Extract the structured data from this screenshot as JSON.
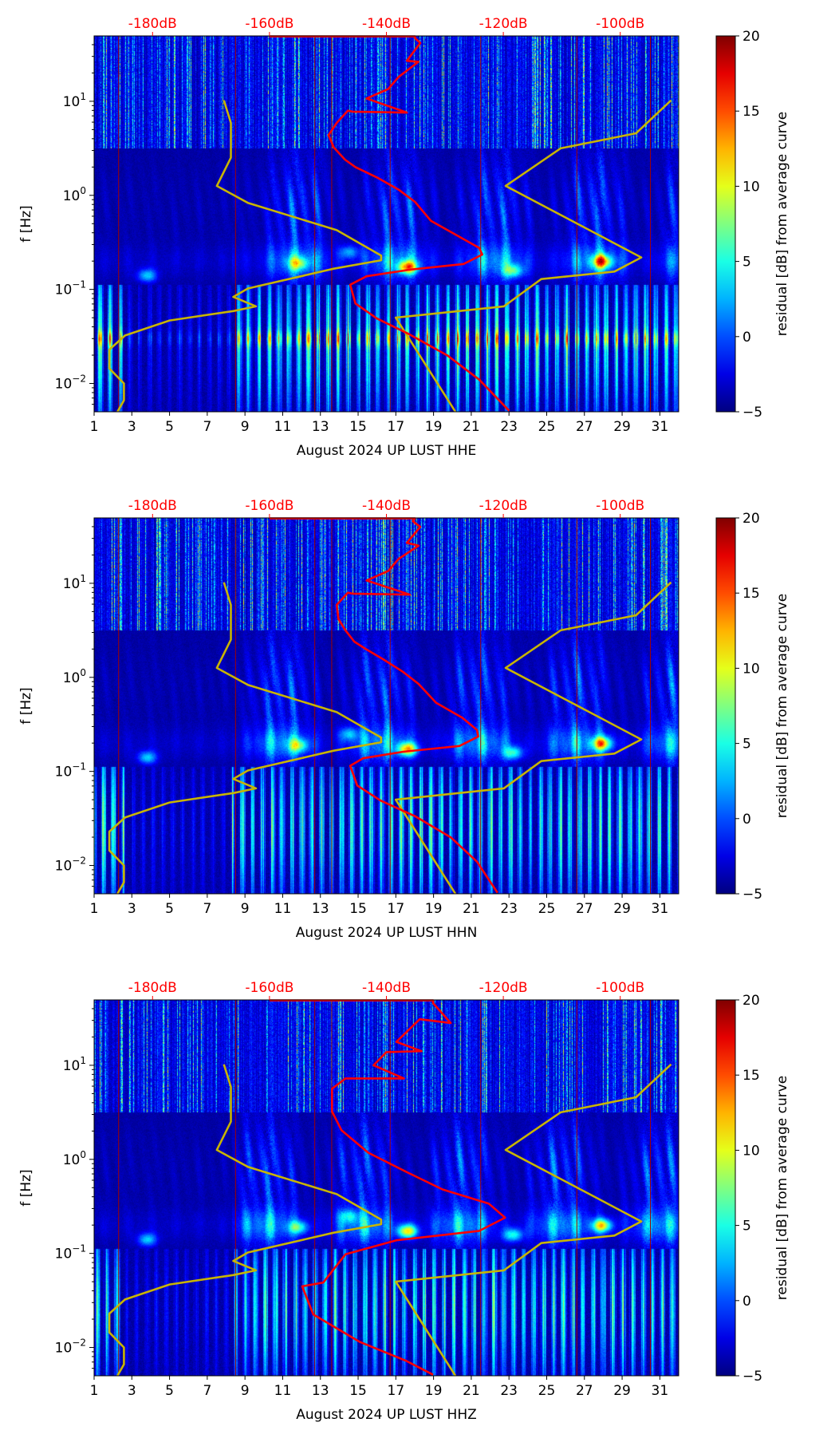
{
  "chart_data": [
    {
      "type": "heatmap",
      "xlabel": "August 2024 UP LUST  HHE",
      "ylabel": "f [Hz]",
      "colorbar_label": "residual [dB] from average curve",
      "xlim": [
        1,
        32
      ],
      "ylim_hz": [
        0.005,
        49.6
      ],
      "yscale": "log",
      "xticks": [
        "1",
        "3",
        "5",
        "7",
        "9",
        "11",
        "13",
        "15",
        "17",
        "19",
        "21",
        "23",
        "25",
        "27",
        "29",
        "31"
      ],
      "yticks": [
        {
          "base": "10",
          "exp": "1",
          "value": 1
        },
        {
          "base": "10",
          "exp": "0",
          "value": 0
        },
        {
          "base": "10",
          "exp": "−1",
          "value": -1
        },
        {
          "base": "10",
          "exp": "−2",
          "value": -2
        }
      ],
      "top_axis": {
        "range_db": [
          -190,
          -90
        ],
        "ticks": [
          -180,
          -160,
          -140,
          -120,
          -100
        ],
        "labels": [
          "-180dB",
          "-160dB",
          "-140dB",
          "-120dB",
          "-100dB"
        ],
        "color": "#ff0000"
      },
      "colorbar": {
        "range": [
          -5,
          20
        ],
        "ticks": [
          "−5",
          "0",
          "5",
          "10",
          "15",
          "20"
        ],
        "colormap": "jet"
      },
      "series": [
        {
          "name": "noise-model-low",
          "color": "#c8b400",
          "points_db_log10hz": [
            [
              -167.8,
              1.01
            ],
            [
              -166.6,
              0.77
            ],
            [
              -166.6,
              0.4
            ],
            [
              -169.0,
              0.1
            ],
            [
              -163.7,
              -0.08
            ],
            [
              -148.5,
              -0.37
            ],
            [
              -140.9,
              -0.64
            ],
            [
              -140.9,
              -0.69
            ],
            [
              -149.0,
              -0.78
            ],
            [
              -163.7,
              -0.99
            ],
            [
              -166.2,
              -1.08
            ],
            [
              -162.3,
              -1.18
            ],
            [
              -166.2,
              -1.23
            ],
            [
              -177.1,
              -1.33
            ],
            [
              -184.7,
              -1.49
            ],
            [
              -187.4,
              -1.64
            ],
            [
              -187.4,
              -1.84
            ],
            [
              -184.9,
              -2.0
            ],
            [
              -184.9,
              -2.18
            ],
            [
              -186.0,
              -2.3
            ]
          ]
        },
        {
          "name": "noise-model-high",
          "color": "#c8b400",
          "points_db_log10hz": [
            [
              -91.3,
              1.01
            ],
            [
              -97.3,
              0.66
            ],
            [
              -110.2,
              0.5
            ],
            [
              -119.6,
              0.1
            ],
            [
              -96.4,
              -0.66
            ],
            [
              -101.0,
              -0.81
            ],
            [
              -113.5,
              -0.89
            ],
            [
              -119.9,
              -1.18
            ],
            [
              -138.4,
              -1.3
            ],
            [
              -128.2,
              -2.3
            ]
          ]
        },
        {
          "name": "psd-average",
          "color": "#ff0000",
          "points_db_log10hz": [
            [
              -160,
              1.69
            ],
            [
              -135.1,
              1.69
            ],
            [
              -135.1,
              1.67
            ],
            [
              -134.2,
              1.62
            ],
            [
              -136.5,
              1.43
            ],
            [
              -134.5,
              1.42
            ],
            [
              -137.9,
              1.26
            ],
            [
              -139.7,
              1.13
            ],
            [
              -143.4,
              1.03
            ],
            [
              -136.5,
              0.88
            ],
            [
              -145.8,
              0.89
            ],
            [
              -146.6,
              0.9
            ],
            [
              -148.5,
              0.77
            ],
            [
              -149.9,
              0.64
            ],
            [
              -149.0,
              0.51
            ],
            [
              -147.1,
              0.38
            ],
            [
              -145.3,
              0.3
            ],
            [
              -141.6,
              0.19
            ],
            [
              -137.9,
              0.06
            ],
            [
              -135.1,
              -0.07
            ],
            [
              -132.4,
              -0.27
            ],
            [
              -127.8,
              -0.43
            ],
            [
              -124.1,
              -0.56
            ],
            [
              -123.6,
              -0.63
            ],
            [
              -126.8,
              -0.73
            ],
            [
              -136.0,
              -0.79
            ],
            [
              -143.4,
              -0.86
            ],
            [
              -146.2,
              -0.95
            ],
            [
              -145.3,
              -1.15
            ],
            [
              -141.6,
              -1.31
            ],
            [
              -136.0,
              -1.48
            ],
            [
              -129.6,
              -1.7
            ],
            [
              -124.1,
              -1.96
            ],
            [
              -119.0,
              -2.29
            ]
          ]
        }
      ]
    },
    {
      "type": "heatmap",
      "xlabel": "August 2024 UP LUST  HHN",
      "ylabel": "f [Hz]",
      "colorbar_label": "residual [dB] from average curve",
      "xlim": [
        1,
        32
      ],
      "ylim_hz": [
        0.005,
        49.6
      ],
      "yscale": "log",
      "xticks": [
        "1",
        "3",
        "5",
        "7",
        "9",
        "11",
        "13",
        "15",
        "17",
        "19",
        "21",
        "23",
        "25",
        "27",
        "29",
        "31"
      ],
      "yticks": [
        {
          "base": "10",
          "exp": "1",
          "value": 1
        },
        {
          "base": "10",
          "exp": "0",
          "value": 0
        },
        {
          "base": "10",
          "exp": "−1",
          "value": -1
        },
        {
          "base": "10",
          "exp": "−2",
          "value": -2
        }
      ],
      "top_axis": {
        "range_db": [
          -190,
          -90
        ],
        "ticks": [
          -180,
          -160,
          -140,
          -120,
          -100
        ],
        "labels": [
          "-180dB",
          "-160dB",
          "-140dB",
          "-120dB",
          "-100dB"
        ],
        "color": "#ff0000"
      },
      "colorbar": {
        "range": [
          -5,
          20
        ],
        "ticks": [
          "−5",
          "0",
          "5",
          "10",
          "15",
          "20"
        ],
        "colormap": "jet"
      },
      "series": [
        {
          "name": "noise-model-low",
          "color": "#c8b400",
          "points_db_log10hz": [
            [
              -167.8,
              1.01
            ],
            [
              -166.6,
              0.77
            ],
            [
              -166.6,
              0.4
            ],
            [
              -169.0,
              0.1
            ],
            [
              -163.7,
              -0.08
            ],
            [
              -148.5,
              -0.37
            ],
            [
              -140.9,
              -0.64
            ],
            [
              -140.9,
              -0.69
            ],
            [
              -149.0,
              -0.78
            ],
            [
              -163.7,
              -0.99
            ],
            [
              -166.2,
              -1.08
            ],
            [
              -162.3,
              -1.18
            ],
            [
              -166.2,
              -1.23
            ],
            [
              -177.1,
              -1.33
            ],
            [
              -184.7,
              -1.49
            ],
            [
              -187.4,
              -1.64
            ],
            [
              -187.4,
              -1.84
            ],
            [
              -184.9,
              -2.0
            ],
            [
              -184.9,
              -2.18
            ],
            [
              -186.0,
              -2.3
            ]
          ]
        },
        {
          "name": "noise-model-high",
          "color": "#c8b400",
          "points_db_log10hz": [
            [
              -91.3,
              1.01
            ],
            [
              -97.3,
              0.66
            ],
            [
              -110.2,
              0.5
            ],
            [
              -119.6,
              0.1
            ],
            [
              -96.4,
              -0.66
            ],
            [
              -101.0,
              -0.81
            ],
            [
              -113.5,
              -0.89
            ],
            [
              -119.9,
              -1.18
            ],
            [
              -138.4,
              -1.3
            ],
            [
              -128.2,
              -2.3
            ]
          ]
        },
        {
          "name": "psd-average",
          "color": "#ff0000",
          "points_db_log10hz": [
            [
              -160,
              1.69
            ],
            [
              -135.1,
              1.69
            ],
            [
              -135.5,
              1.66
            ],
            [
              -134.2,
              1.6
            ],
            [
              -136.5,
              1.43
            ],
            [
              -134.5,
              1.4
            ],
            [
              -137.9,
              1.26
            ],
            [
              -139.7,
              1.13
            ],
            [
              -143.4,
              1.03
            ],
            [
              -136.0,
              0.88
            ],
            [
              -145.8,
              0.89
            ],
            [
              -146.6,
              0.9
            ],
            [
              -148.5,
              0.77
            ],
            [
              -148.2,
              0.62
            ],
            [
              -147.0,
              0.5
            ],
            [
              -145.5,
              0.38
            ],
            [
              -143.5,
              0.3
            ],
            [
              -140.5,
              0.19
            ],
            [
              -137.2,
              0.06
            ],
            [
              -134.5,
              -0.07
            ],
            [
              -131.5,
              -0.27
            ],
            [
              -127.0,
              -0.43
            ],
            [
              -124.5,
              -0.56
            ],
            [
              -124.3,
              -0.63
            ],
            [
              -127.5,
              -0.73
            ],
            [
              -137.0,
              -0.79
            ],
            [
              -144.0,
              -0.86
            ],
            [
              -146.2,
              -0.94
            ],
            [
              -145.0,
              -1.15
            ],
            [
              -141.0,
              -1.31
            ],
            [
              -135.0,
              -1.48
            ],
            [
              -129.0,
              -1.7
            ],
            [
              -124.5,
              -1.96
            ],
            [
              -121.0,
              -2.29
            ]
          ]
        }
      ]
    },
    {
      "type": "heatmap",
      "xlabel": "August 2024 UP LUST  HHZ",
      "ylabel": "f [Hz]",
      "colorbar_label": "residual [dB] from average curve",
      "xlim": [
        1,
        32
      ],
      "ylim_hz": [
        0.005,
        49.6
      ],
      "yscale": "log",
      "xticks": [
        "1",
        "3",
        "5",
        "7",
        "9",
        "11",
        "13",
        "15",
        "17",
        "19",
        "21",
        "23",
        "25",
        "27",
        "29",
        "31"
      ],
      "yticks": [
        {
          "base": "10",
          "exp": "1",
          "value": 1
        },
        {
          "base": "10",
          "exp": "0",
          "value": 0
        },
        {
          "base": "10",
          "exp": "−1",
          "value": -1
        },
        {
          "base": "10",
          "exp": "−2",
          "value": -2
        }
      ],
      "top_axis": {
        "range_db": [
          -190,
          -90
        ],
        "ticks": [
          -180,
          -160,
          -140,
          -120,
          -100
        ],
        "labels": [
          "-180dB",
          "-160dB",
          "-140dB",
          "-120dB",
          "-100dB"
        ],
        "color": "#ff0000"
      },
      "colorbar": {
        "range": [
          -5,
          20
        ],
        "ticks": [
          "−5",
          "0",
          "5",
          "10",
          "15",
          "20"
        ],
        "colormap": "jet"
      },
      "series": [
        {
          "name": "noise-model-low",
          "color": "#c8b400",
          "points_db_log10hz": [
            [
              -167.8,
              1.01
            ],
            [
              -166.6,
              0.77
            ],
            [
              -166.6,
              0.4
            ],
            [
              -169.0,
              0.1
            ],
            [
              -163.7,
              -0.08
            ],
            [
              -148.5,
              -0.37
            ],
            [
              -140.9,
              -0.64
            ],
            [
              -140.9,
              -0.69
            ],
            [
              -149.0,
              -0.78
            ],
            [
              -163.7,
              -0.99
            ],
            [
              -166.2,
              -1.08
            ],
            [
              -162.3,
              -1.18
            ],
            [
              -166.2,
              -1.23
            ],
            [
              -177.1,
              -1.33
            ],
            [
              -184.7,
              -1.49
            ],
            [
              -187.4,
              -1.64
            ],
            [
              -187.4,
              -1.84
            ],
            [
              -184.9,
              -2.0
            ],
            [
              -184.9,
              -2.18
            ],
            [
              -186.0,
              -2.3
            ]
          ]
        },
        {
          "name": "noise-model-high",
          "color": "#c8b400",
          "points_db_log10hz": [
            [
              -91.3,
              1.01
            ],
            [
              -97.3,
              0.66
            ],
            [
              -110.2,
              0.5
            ],
            [
              -119.6,
              0.1
            ],
            [
              -96.4,
              -0.66
            ],
            [
              -101.0,
              -0.81
            ],
            [
              -113.5,
              -0.89
            ],
            [
              -119.9,
              -1.18
            ],
            [
              -138.4,
              -1.3
            ],
            [
              -128.2,
              -2.3
            ]
          ]
        },
        {
          "name": "psd-average",
          "color": "#ff0000",
          "points_db_log10hz": [
            [
              -160,
              1.69
            ],
            [
              -132.0,
              1.69
            ],
            [
              -132.0,
              1.66
            ],
            [
              -129.0,
              1.45
            ],
            [
              -134.3,
              1.49
            ],
            [
              -138.3,
              1.25
            ],
            [
              -134.0,
              1.15
            ],
            [
              -140.0,
              1.14
            ],
            [
              -142.2,
              1.0
            ],
            [
              -137.0,
              0.86
            ],
            [
              -147.0,
              0.86
            ],
            [
              -149.3,
              0.75
            ],
            [
              -149.3,
              0.51
            ],
            [
              -147.7,
              0.31
            ],
            [
              -143.1,
              0.07
            ],
            [
              -136.7,
              -0.13
            ],
            [
              -130.4,
              -0.32
            ],
            [
              -122.5,
              -0.47
            ],
            [
              -119.7,
              -0.62
            ],
            [
              -124.1,
              -0.76
            ],
            [
              -138.3,
              -0.86
            ],
            [
              -147.0,
              -1.01
            ],
            [
              -150.8,
              -1.31
            ],
            [
              -154.4,
              -1.35
            ],
            [
              -152.5,
              -1.65
            ],
            [
              -144.6,
              -1.94
            ],
            [
              -136.7,
              -2.14
            ],
            [
              -132.0,
              -2.29
            ]
          ]
        }
      ]
    }
  ]
}
